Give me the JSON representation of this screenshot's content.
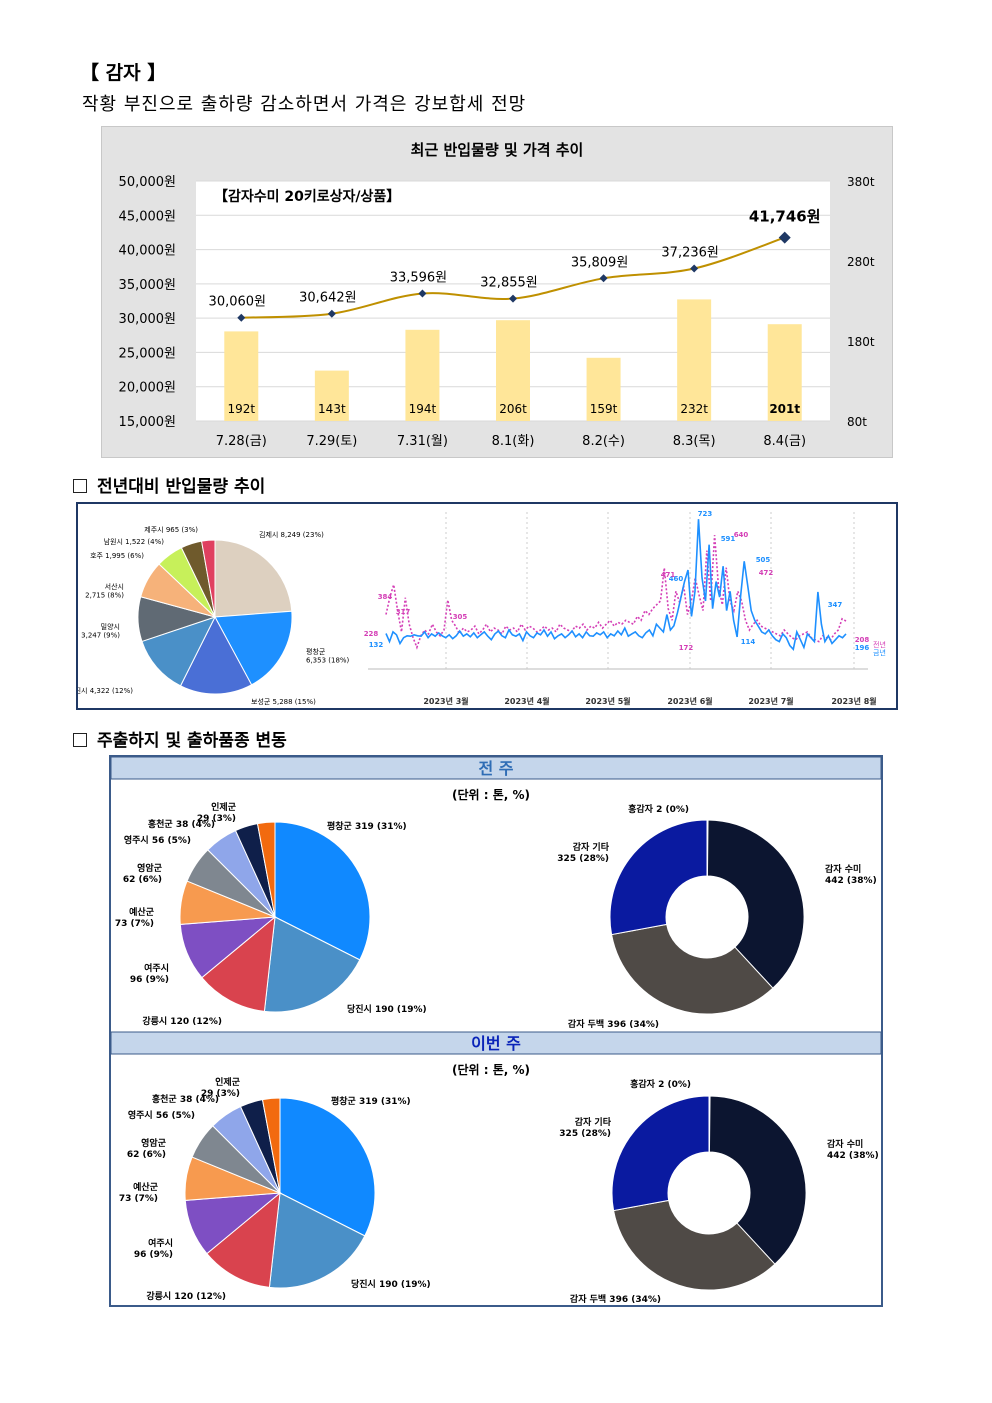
{
  "header": {
    "title": "【 감자 】",
    "subtitle": "작황 부진으로 출하량 감소하면서 가격은 강보합세 전망"
  },
  "combo_chart": {
    "title": "최근 반입물량 및 가격 추이",
    "inner_label": "【감자수미 20키로상자/상품】",
    "left_ticks": [
      "50,000원",
      "45,000원",
      "40,000원",
      "35,000원",
      "30,000원",
      "25,000원",
      "20,000원",
      "15,000원"
    ],
    "right_ticks": [
      "380t",
      "280t",
      "180t",
      "80t"
    ],
    "categories": [
      "7.28(금)",
      "7.29(토)",
      "7.31(월)",
      "8.1(화)",
      "8.2(수)",
      "8.3(목)",
      "8.4(금)"
    ],
    "price_labels": [
      "30,060원",
      "30,642원",
      "33,596원",
      "32,855원",
      "35,809원",
      "37,236원",
      "41,746원"
    ],
    "volume_labels": [
      "192t",
      "143t",
      "194t",
      "206t",
      "159t",
      "232t",
      "201t"
    ],
    "colors": {
      "bar": "#ffe699",
      "line": "#bf9000",
      "marker": "#1f3864",
      "panel": "#e3e3e3"
    }
  },
  "section2": {
    "title": "전년대비 반입물량 추이",
    "pie_labels": [
      "김제시 8,249 (23%)",
      "평창군\n6,353 (18%)",
      "보성군 5,288 (15%)",
      "당진시 4,322 (12%)",
      "밀양시\n3,247 (9%)",
      "서산시\n2,715 (8%)",
      "호주 1,995 (6%)",
      "남원시 1,522 (4%)",
      "제주시 965 (3%)"
    ],
    "line_labels": {
      "peaks": [
        "384",
        "317",
        "305",
        "723",
        "460",
        "591",
        "640",
        "505",
        "347",
        "172",
        "114",
        "132",
        "472",
        "471",
        "228",
        "208",
        "196"
      ],
      "months": [
        "2023년 3월",
        "2023년 4월",
        "2023년 5월",
        "2023년 6월",
        "2023년 7월",
        "2023년 8월"
      ],
      "legend": [
        "전년",
        "금년"
      ]
    }
  },
  "section3": {
    "title": "주출하지 및 출하품종 변동",
    "prev_week": {
      "title": "전 주",
      "unit": "(단위 : 톤, %)",
      "pie_labels": [
        "평창군 319 (31%)",
        "당진시 190 (19%)",
        "강릉시 120 (12%)",
        "여주시\n96 (9%)",
        "예산군\n73 (7%)",
        "영암군\n62 (6%)",
        "영주시 56 (5%)",
        "홍천군 38 (4%)",
        "인제군\n29 (3%)"
      ],
      "donut_labels": [
        "홍감자 2 (0%)",
        "감자 수미\n442 (38%)",
        "감자 두백 396 (34%)",
        "감자 기타\n325 (28%)"
      ]
    },
    "this_week": {
      "title": "이번 주",
      "unit": "(단위 : 톤, %)",
      "pie_labels": [
        "평창군 319 (31%)",
        "당진시 190 (19%)",
        "강릉시 120 (12%)",
        "여주시\n96 (9%)",
        "예산군\n73 (7%)",
        "영암군\n62 (6%)",
        "영주시 56 (5%)",
        "홍천군 38 (4%)",
        "인제군\n29 (3%)"
      ],
      "donut_labels": [
        "홍감자 2 (0%)",
        "감자 수미\n442 (38%)",
        "감자 두백 396 (34%)",
        "감자 기타\n325 (28%)"
      ]
    }
  },
  "chart_data": [
    {
      "type": "bar",
      "title": "최근 반입물량 및 가격 추이",
      "categories": [
        "7.28(금)",
        "7.29(토)",
        "7.31(월)",
        "8.1(화)",
        "8.2(수)",
        "8.3(목)",
        "8.4(금)"
      ],
      "series": [
        {
          "name": "반입물량",
          "values": [
            192,
            143,
            194,
            206,
            159,
            232,
            201
          ]
        },
        {
          "name": "가격",
          "values": [
            30060,
            30642,
            33596,
            32855,
            35809,
            37236,
            41746
          ]
        }
      ],
      "ylim": [
        15000,
        50000
      ],
      "y2lim": [
        80,
        380
      ]
    },
    {
      "type": "pie",
      "categories": [
        "김제시",
        "평창군",
        "보성군",
        "당진시",
        "밀양시",
        "서산시",
        "호주",
        "남원시",
        "제주시"
      ],
      "values": [
        8249,
        6353,
        5288,
        4322,
        3247,
        2715,
        1995,
        1522,
        965
      ]
    },
    {
      "type": "pie",
      "title": "전 주",
      "categories": [
        "평창군",
        "당진시",
        "강릉시",
        "여주시",
        "예산군",
        "영암군",
        "영주시",
        "홍천군",
        "인제군"
      ],
      "values": [
        319,
        190,
        120,
        96,
        73,
        62,
        56,
        38,
        29
      ]
    },
    {
      "type": "pie",
      "title": "전 주",
      "categories": [
        "홍감자",
        "감자 수미",
        "감자 두백",
        "감자 기타"
      ],
      "values": [
        2,
        442,
        396,
        325
      ]
    },
    {
      "type": "pie",
      "title": "이번 주",
      "categories": [
        "평창군",
        "당진시",
        "강릉시",
        "여주시",
        "예산군",
        "영암군",
        "영주시",
        "홍천군",
        "인제군"
      ],
      "values": [
        319,
        190,
        120,
        96,
        73,
        62,
        56,
        38,
        29
      ]
    },
    {
      "type": "pie",
      "title": "이번 주",
      "categories": [
        "홍감자",
        "감자 수미",
        "감자 두백",
        "감자 기타"
      ],
      "values": [
        2,
        442,
        396,
        325
      ]
    }
  ]
}
